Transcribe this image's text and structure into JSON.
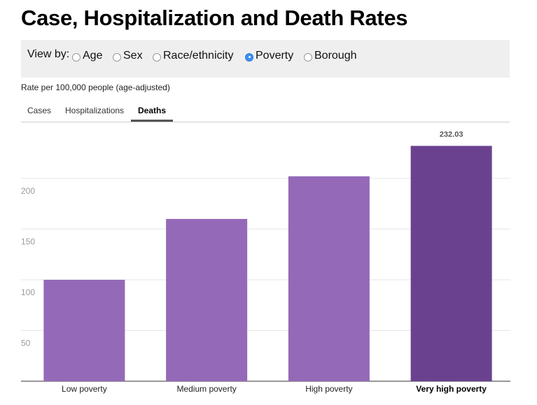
{
  "title": "Case, Hospitalization and Death Rates",
  "view_by": {
    "label": "View by:",
    "options": [
      {
        "label": "Age",
        "checked": false
      },
      {
        "label": "Sex",
        "checked": false
      },
      {
        "label": "Race/ethnicity",
        "checked": false
      },
      {
        "label": "Poverty",
        "checked": true
      },
      {
        "label": "Borough",
        "checked": false
      }
    ]
  },
  "subtitle": "Rate per 100,000 people (age-adjusted)",
  "tabs": [
    {
      "label": "Cases",
      "active": false
    },
    {
      "label": "Hospitalizations",
      "active": false
    },
    {
      "label": "Deaths",
      "active": true
    }
  ],
  "colors": {
    "bar": "#9469b8",
    "bar_highlight": "#6a418f",
    "radio_checked": "#3d8ff0"
  },
  "chart_data": {
    "type": "bar",
    "title": "",
    "xlabel": "",
    "ylabel": "",
    "categories": [
      "Low poverty",
      "Medium poverty",
      "High poverty",
      "Very high poverty"
    ],
    "values": [
      100,
      160,
      202,
      232.03
    ],
    "highlighted_category": "Very high poverty",
    "data_labels": [
      {
        "category": "Very high poverty",
        "text": "232.03"
      }
    ],
    "ylim": [
      0,
      250
    ],
    "yticks": [
      50,
      100,
      150,
      200
    ],
    "grid": true,
    "legend": "none"
  }
}
